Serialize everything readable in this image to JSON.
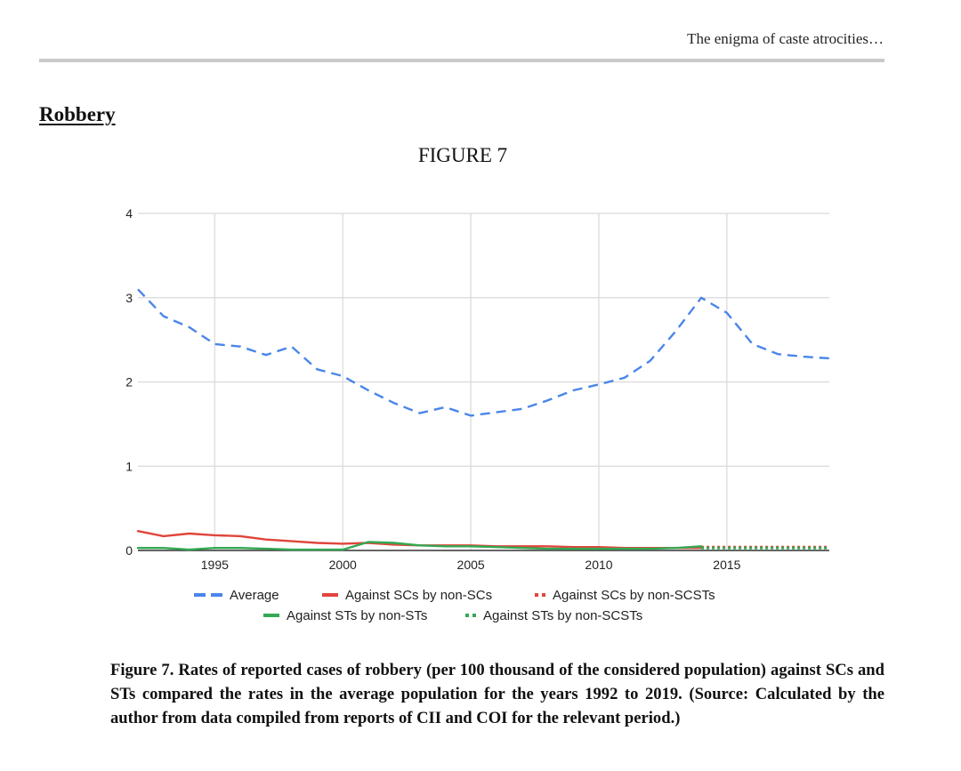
{
  "page": {
    "running_header": "The enigma of caste atrocities…",
    "section_heading": "Robbery",
    "figure_label": "FIGURE 7",
    "caption": "Figure 7. Rates of reported cases of robbery (per 100 thousand of the considered population) against SCs and STs compared the rates in the average population for the years 1992 to 2019. (Source: Calculated by the author from data compiled from reports of CII and COI for the relevant period.)"
  },
  "colors": {
    "average": "#4a86e8",
    "sc_non_sc": "#e0453b",
    "st_non_st": "#34a853",
    "grid": "#d9d9d9",
    "axis": "#333333"
  },
  "chart_data": {
    "type": "line",
    "title": "",
    "xlabel": "",
    "ylabel": "",
    "xlim": [
      1992,
      2019
    ],
    "ylim": [
      0,
      4
    ],
    "x_ticks": [
      1995,
      2000,
      2005,
      2010,
      2015
    ],
    "y_ticks": [
      0,
      1,
      2,
      3,
      4
    ],
    "grid": true,
    "legend_position": "bottom",
    "x": [
      1992,
      1993,
      1994,
      1995,
      1996,
      1997,
      1998,
      1999,
      2000,
      2001,
      2002,
      2003,
      2004,
      2005,
      2006,
      2007,
      2008,
      2009,
      2010,
      2011,
      2012,
      2013,
      2014,
      2015,
      2016,
      2017,
      2018,
      2019
    ],
    "series": [
      {
        "name": "Average",
        "style": "dashed",
        "color": "#4a86e8",
        "values": [
          3.1,
          2.78,
          2.65,
          2.45,
          2.42,
          2.32,
          2.42,
          2.15,
          2.07,
          1.9,
          1.75,
          1.63,
          1.7,
          1.6,
          1.64,
          1.68,
          1.78,
          1.9,
          1.97,
          2.05,
          2.25,
          2.6,
          3.0,
          2.82,
          2.45,
          2.33,
          2.3,
          2.28
        ]
      },
      {
        "name": "Against SCs by non-SCs",
        "style": "solid",
        "color": "#e0453b",
        "values": [
          0.23,
          0.17,
          0.2,
          0.18,
          0.17,
          0.13,
          0.11,
          0.09,
          0.08,
          0.09,
          0.07,
          0.06,
          0.06,
          0.06,
          0.05,
          0.05,
          0.05,
          0.04,
          0.04,
          0.03,
          0.03,
          0.03,
          0.03,
          null,
          null,
          null,
          null,
          null
        ]
      },
      {
        "name": "Against SCs by non-SCSTs",
        "style": "dotted",
        "color": "#e0453b",
        "values": [
          null,
          null,
          null,
          null,
          null,
          null,
          null,
          null,
          null,
          null,
          null,
          null,
          null,
          null,
          null,
          null,
          null,
          null,
          null,
          null,
          null,
          null,
          0.04,
          0.04,
          0.04,
          0.04,
          0.04,
          0.04
        ]
      },
      {
        "name": "Against STs by non-STs",
        "style": "solid",
        "color": "#34a853",
        "values": [
          0.03,
          0.03,
          0.01,
          0.03,
          0.03,
          0.02,
          0.01,
          0.01,
          0.01,
          0.1,
          0.09,
          0.06,
          0.05,
          0.05,
          0.04,
          0.03,
          0.02,
          0.02,
          0.02,
          0.02,
          0.02,
          0.03,
          0.05,
          null,
          null,
          null,
          null,
          null
        ]
      },
      {
        "name": "Against STs by non-SCSTs",
        "style": "dotted",
        "color": "#34a853",
        "values": [
          null,
          null,
          null,
          null,
          null,
          null,
          null,
          null,
          null,
          null,
          null,
          null,
          null,
          null,
          null,
          null,
          null,
          null,
          null,
          null,
          null,
          null,
          0.03,
          0.03,
          0.03,
          0.03,
          0.03,
          0.03
        ]
      }
    ]
  }
}
